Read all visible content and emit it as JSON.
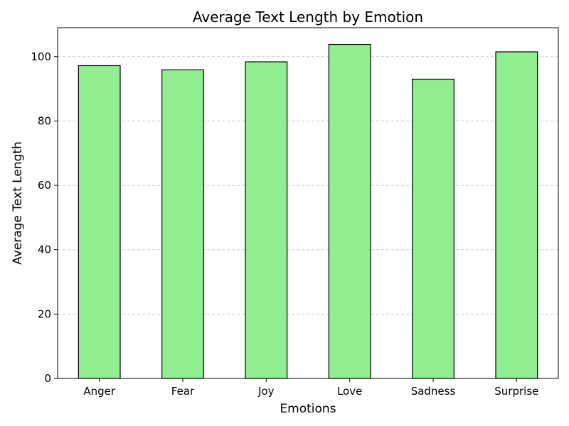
{
  "chart_data": {
    "type": "bar",
    "title": "Average Text Length by Emotion",
    "xlabel": "Emotions",
    "ylabel": "Average Text Length",
    "categories": [
      "Anger",
      "Fear",
      "Joy",
      "Love",
      "Sadness",
      "Surprise"
    ],
    "values": [
      97.2,
      95.9,
      98.4,
      103.8,
      93.0,
      101.5
    ],
    "ylim": [
      0,
      109
    ],
    "yticks": [
      0,
      20,
      40,
      60,
      80,
      100
    ],
    "grid": "y-dashed",
    "legend": "none",
    "bar_color": "#90ee90",
    "edge_color": "#000000"
  }
}
